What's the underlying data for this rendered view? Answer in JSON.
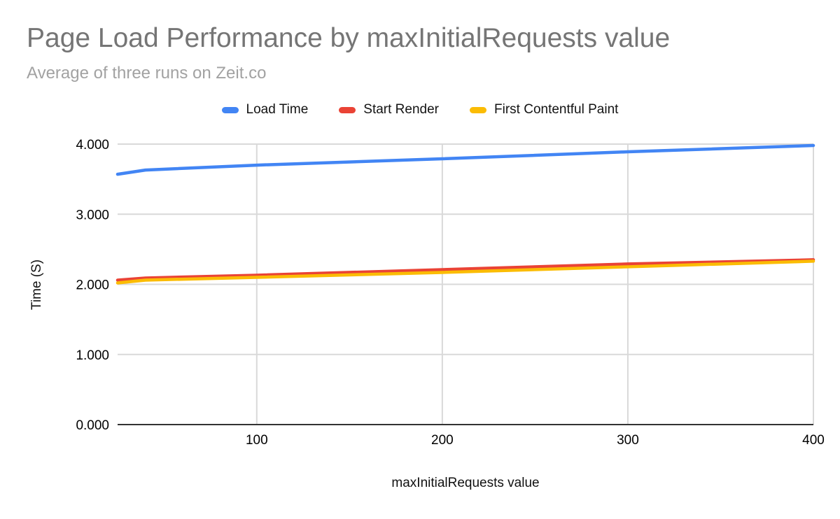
{
  "chart": {
    "title": "Page Load Performance by maxInitialRequests value",
    "subtitle": "Average of three runs on Zeit.co"
  },
  "chart_data": {
    "type": "line",
    "title": "Page Load Performance by maxInitialRequests value",
    "subtitle": "Average of three runs on Zeit.co",
    "xlabel": "maxInitialRequests value",
    "ylabel": "Time (S)",
    "x": [
      25,
      40,
      100,
      200,
      300,
      400
    ],
    "series": [
      {
        "name": "Load Time",
        "color": "#4285F4",
        "values": [
          3.57,
          3.63,
          3.7,
          3.79,
          3.89,
          3.98
        ]
      },
      {
        "name": "Start Render",
        "color": "#EA4335",
        "values": [
          2.06,
          2.09,
          2.13,
          2.21,
          2.29,
          2.35
        ]
      },
      {
        "name": "First Contentful Paint",
        "color": "#FBBC04",
        "values": [
          2.02,
          2.06,
          2.1,
          2.17,
          2.25,
          2.33
        ]
      }
    ],
    "xlim": [
      25,
      400
    ],
    "ylim": [
      0,
      4
    ],
    "xticks": {
      "values": [
        100,
        200,
        300,
        400
      ],
      "labels": [
        "100",
        "200",
        "300",
        "400"
      ]
    },
    "yticks": {
      "values": [
        0,
        1,
        2,
        3,
        4
      ],
      "labels": [
        "0.000",
        "1.000",
        "2.000",
        "3.000",
        "4.000"
      ]
    },
    "grid": true,
    "legend_position": "top",
    "colors": {
      "grid": "#d9d9d9",
      "axis": "#333333",
      "tick_text": "#000000",
      "title_text": "#757575",
      "subtitle_text": "#a2a2a2"
    }
  }
}
